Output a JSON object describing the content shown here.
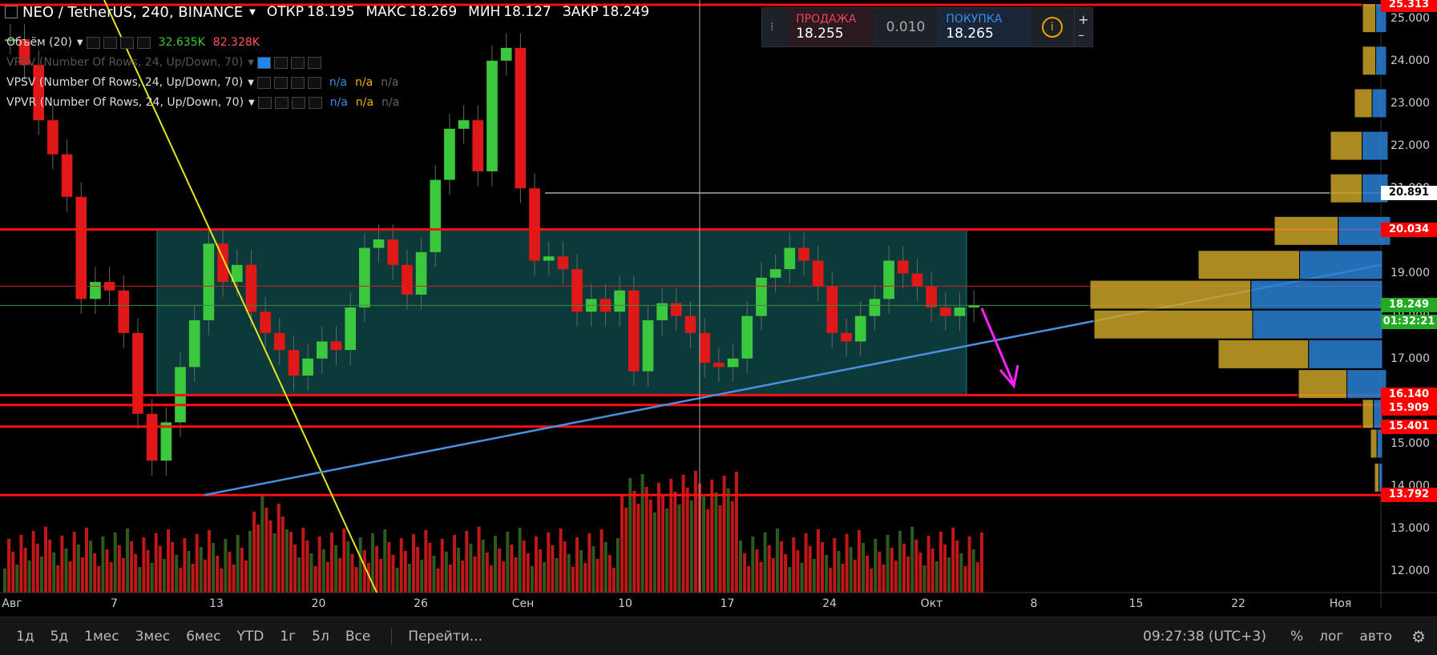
{
  "header": {
    "symbol": "NEO / TetherUS, 240, BINANCE",
    "open_label": "ОТКР",
    "open": "18.195",
    "high_label": "МАКС",
    "high": "18.269",
    "low_label": "МИН",
    "low": "18.127",
    "close_label": "ЗАКР",
    "close": "18.249"
  },
  "indicators": [
    {
      "label": "Объём (20)",
      "v1": "32.635K",
      "v2": "82.328K"
    },
    {
      "label": "VPSV (Number Of Rows, 24, Up/Down, 70)"
    },
    {
      "label": "VPSV (Number Of Rows, 24, Up/Down, 70)",
      "na1": "n/a",
      "na2": "n/a",
      "na3": "n/a"
    },
    {
      "label": "VPVR (Number Of Rows, 24, Up/Down, 70)",
      "na1": "n/a",
      "na2": "n/a",
      "na3": "n/a"
    }
  ],
  "trade": {
    "sell_label": "ПРОДАЖА",
    "sell_price": "18.255",
    "spread": "0.010",
    "buy_label": "ПОКУПКА",
    "buy_price": "18.265",
    "plus": "+",
    "minus": "–"
  },
  "chart_data": {
    "type": "candlestick",
    "y_axis": {
      "min": 11.5,
      "max": 25.313,
      "ticks": [
        "25.000",
        "24.000",
        "23.000",
        "22.000",
        "21.000",
        "20.000",
        "19.000",
        "18.000",
        "17.000",
        "16.000",
        "15.000",
        "14.000",
        "13.000",
        "12.000"
      ]
    },
    "x_axis": {
      "ticks": [
        "Авг",
        "7",
        "13",
        "20",
        "26",
        "Сен",
        "10",
        "17",
        "24",
        "Окт",
        "8",
        "15",
        "22",
        "Ноя"
      ]
    },
    "price_tags": [
      {
        "value": "25.313",
        "color": "#ff0000"
      },
      {
        "value": "20.891",
        "color": "#ffffff"
      },
      {
        "value": "20.034",
        "color": "#ff0000"
      },
      {
        "value": "18.249",
        "color": "#22aa22"
      },
      {
        "value": "01:32:21",
        "color": "#22aa22"
      },
      {
        "value": "16.140",
        "color": "#ff0000"
      },
      {
        "value": "15.909",
        "color": "#ff0000"
      },
      {
        "value": "15.401",
        "color": "#ff0000"
      },
      {
        "value": "13.792",
        "color": "#ff0000"
      }
    ],
    "horizontal_levels": [
      25.313,
      20.891,
      20.034,
      18.7,
      18.249,
      16.14,
      15.909,
      15.401,
      13.792
    ],
    "range_box": {
      "top": 20.034,
      "bottom": 16.14
    },
    "close_series": [
      24.5,
      23.9,
      22.6,
      21.8,
      20.8,
      18.4,
      18.8,
      18.6,
      17.6,
      15.7,
      14.6,
      15.5,
      16.8,
      17.9,
      19.7,
      18.8,
      19.2,
      18.1,
      17.6,
      17.2,
      16.6,
      17.0,
      17.4,
      17.2,
      18.2,
      19.6,
      19.8,
      19.2,
      18.5,
      19.5,
      21.2,
      22.4,
      22.6,
      21.4,
      24.0,
      24.3,
      21.0,
      19.3,
      19.4,
      19.1,
      18.1,
      18.4,
      18.1,
      18.6,
      16.7,
      17.9,
      18.3,
      18.0,
      17.6,
      16.9,
      16.8,
      17.0,
      18.0,
      18.9,
      19.1,
      19.6,
      19.3,
      18.7,
      17.6,
      17.4,
      18.0,
      18.4,
      19.3,
      19.0,
      18.7,
      18.2,
      18.0,
      18.2,
      18.249
    ]
  },
  "sidebar_volume_profile": "visible",
  "bottom": {
    "timeframes": [
      "1д",
      "5д",
      "1мес",
      "3мес",
      "6мес",
      "YTD",
      "1г",
      "5л",
      "Все"
    ],
    "goto": "Перейти...",
    "time": "09:27:38 (UTC+3)",
    "percent": "%",
    "log": "лог",
    "auto": "авто"
  }
}
